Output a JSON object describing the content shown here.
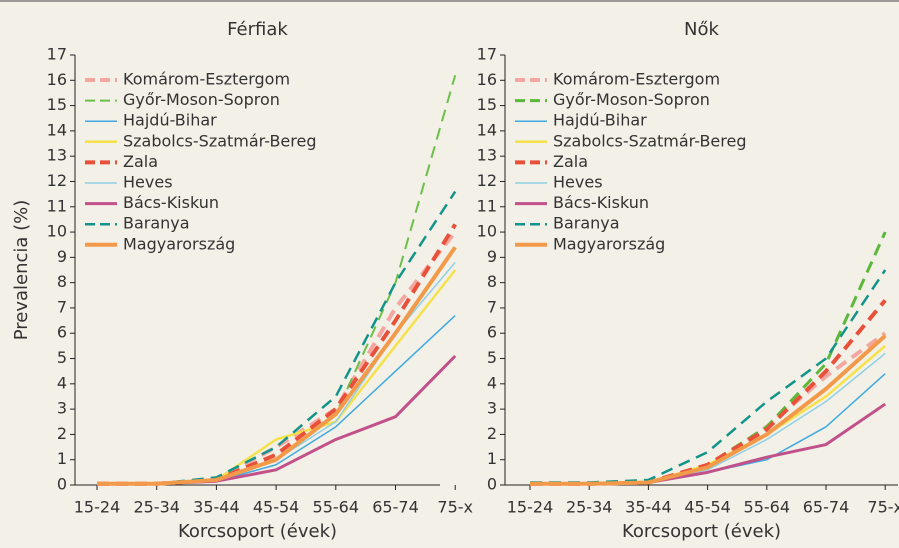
{
  "chart_data": [
    {
      "type": "line",
      "title": "Férfiak",
      "ylabel": "Prevalencia (%)",
      "xlabel": "Korcsoport (évek)",
      "categories": [
        "15-24",
        "25-34",
        "35-44",
        "45-54",
        "55-64",
        "65-74",
        "75-x"
      ],
      "ylim": [
        0,
        17
      ],
      "yticks": [
        0,
        1,
        2,
        3,
        4,
        5,
        6,
        7,
        8,
        9,
        10,
        11,
        12,
        13,
        14,
        15,
        16,
        17
      ],
      "legend": "upper left",
      "series": [
        {
          "name": "Komárom-Esztergom",
          "color": "#f4a6a0",
          "dashed": true,
          "width": 4,
          "values": [
            0.05,
            0.05,
            0.2,
            1.5,
            3,
            7,
            10
          ]
        },
        {
          "name": "Győr-Moson-Sopron",
          "color": "#6cc04a",
          "dashed": true,
          "width": 2,
          "values": [
            0.05,
            0.05,
            0.2,
            1,
            2.8,
            8,
            16.2
          ]
        },
        {
          "name": "Hajdú-Bihar",
          "color": "#3fa9e0",
          "dashed": false,
          "width": 1.5,
          "values": [
            0.05,
            0.05,
            0.15,
            0.8,
            2.3,
            4.5,
            6.7
          ]
        },
        {
          "name": "Szabolcs-Szatmár-Bereg",
          "color": "#f5e14a",
          "dashed": false,
          "width": 2.5,
          "values": [
            0.05,
            0.05,
            0.2,
            1.8,
            2.5,
            5.5,
            8.5
          ]
        },
        {
          "name": "Zala",
          "color": "#e8503a",
          "dashed": true,
          "width": 4,
          "values": [
            0.05,
            0.05,
            0.2,
            1.2,
            3,
            6.5,
            10.3
          ]
        },
        {
          "name": "Heves",
          "color": "#8fd0e6",
          "dashed": false,
          "width": 1.5,
          "values": [
            0.05,
            0.05,
            0.2,
            1,
            2.5,
            6,
            8.8
          ]
        },
        {
          "name": "Bács-Kiskun",
          "color": "#c2508a",
          "dashed": false,
          "width": 3,
          "values": [
            0.05,
            0.05,
            0.15,
            0.6,
            1.8,
            2.7,
            5.1
          ]
        },
        {
          "name": "Baranya",
          "color": "#13948a",
          "dashed": true,
          "width": 2.5,
          "values": [
            0.05,
            0.05,
            0.3,
            1.5,
            3.5,
            8,
            11.6
          ]
        },
        {
          "name": "Magyarország",
          "color": "#f39a4a",
          "dashed": false,
          "width": 4,
          "values": [
            0.05,
            0.05,
            0.2,
            1,
            2.8,
            6,
            9.4
          ]
        }
      ]
    },
    {
      "type": "line",
      "title": "Nők",
      "xlabel": "Korcsoport (évek)",
      "categories": [
        "15-24",
        "25-34",
        "35-44",
        "45-54",
        "55-64",
        "65-74",
        "75-x"
      ],
      "ylim": [
        0,
        17
      ],
      "yticks": [
        0,
        1,
        2,
        3,
        4,
        5,
        6,
        7,
        8,
        9,
        10,
        11,
        12,
        13,
        14,
        15,
        16,
        17
      ],
      "legend": "upper left",
      "series": [
        {
          "name": "Komárom-Esztergom",
          "color": "#f4a6a0",
          "dashed": true,
          "width": 4,
          "values": [
            0.05,
            0.05,
            0.1,
            0.7,
            2.3,
            4.3,
            6
          ]
        },
        {
          "name": "Győr-Moson-Sopron",
          "color": "#5cb83a",
          "dashed": true,
          "width": 3,
          "values": [
            0.05,
            0.05,
            0.1,
            0.8,
            2.3,
            4.8,
            10
          ]
        },
        {
          "name": "Hajdú-Bihar",
          "color": "#3fa9e0",
          "dashed": false,
          "width": 1.5,
          "values": [
            0.05,
            0.05,
            0.1,
            0.5,
            1,
            2.3,
            4.4
          ]
        },
        {
          "name": "Szabolcs-Szatmár-Bereg",
          "color": "#f5e14a",
          "dashed": false,
          "width": 2.5,
          "values": [
            0.05,
            0.05,
            0.1,
            0.8,
            2,
            3.5,
            5.5
          ]
        },
        {
          "name": "Zala",
          "color": "#e8503a",
          "dashed": true,
          "width": 4,
          "values": [
            0.05,
            0.05,
            0.1,
            0.8,
            2.2,
            4.5,
            7.3
          ]
        },
        {
          "name": "Heves",
          "color": "#8fd0e6",
          "dashed": false,
          "width": 1.5,
          "values": [
            0.05,
            0.05,
            0.1,
            0.6,
            1.8,
            3.3,
            5.2
          ]
        },
        {
          "name": "Bács-Kiskun",
          "color": "#c2508a",
          "dashed": false,
          "width": 3,
          "values": [
            0.05,
            0.05,
            0.1,
            0.5,
            1.1,
            1.6,
            3.2
          ]
        },
        {
          "name": "Baranya",
          "color": "#13948a",
          "dashed": true,
          "width": 2.5,
          "values": [
            0.1,
            0.1,
            0.2,
            1.3,
            3.3,
            5,
            8.5
          ]
        },
        {
          "name": "Magyarország",
          "color": "#f39a4a",
          "dashed": false,
          "width": 4,
          "values": [
            0.05,
            0.05,
            0.1,
            0.7,
            2,
            3.8,
            5.9
          ]
        }
      ]
    }
  ]
}
